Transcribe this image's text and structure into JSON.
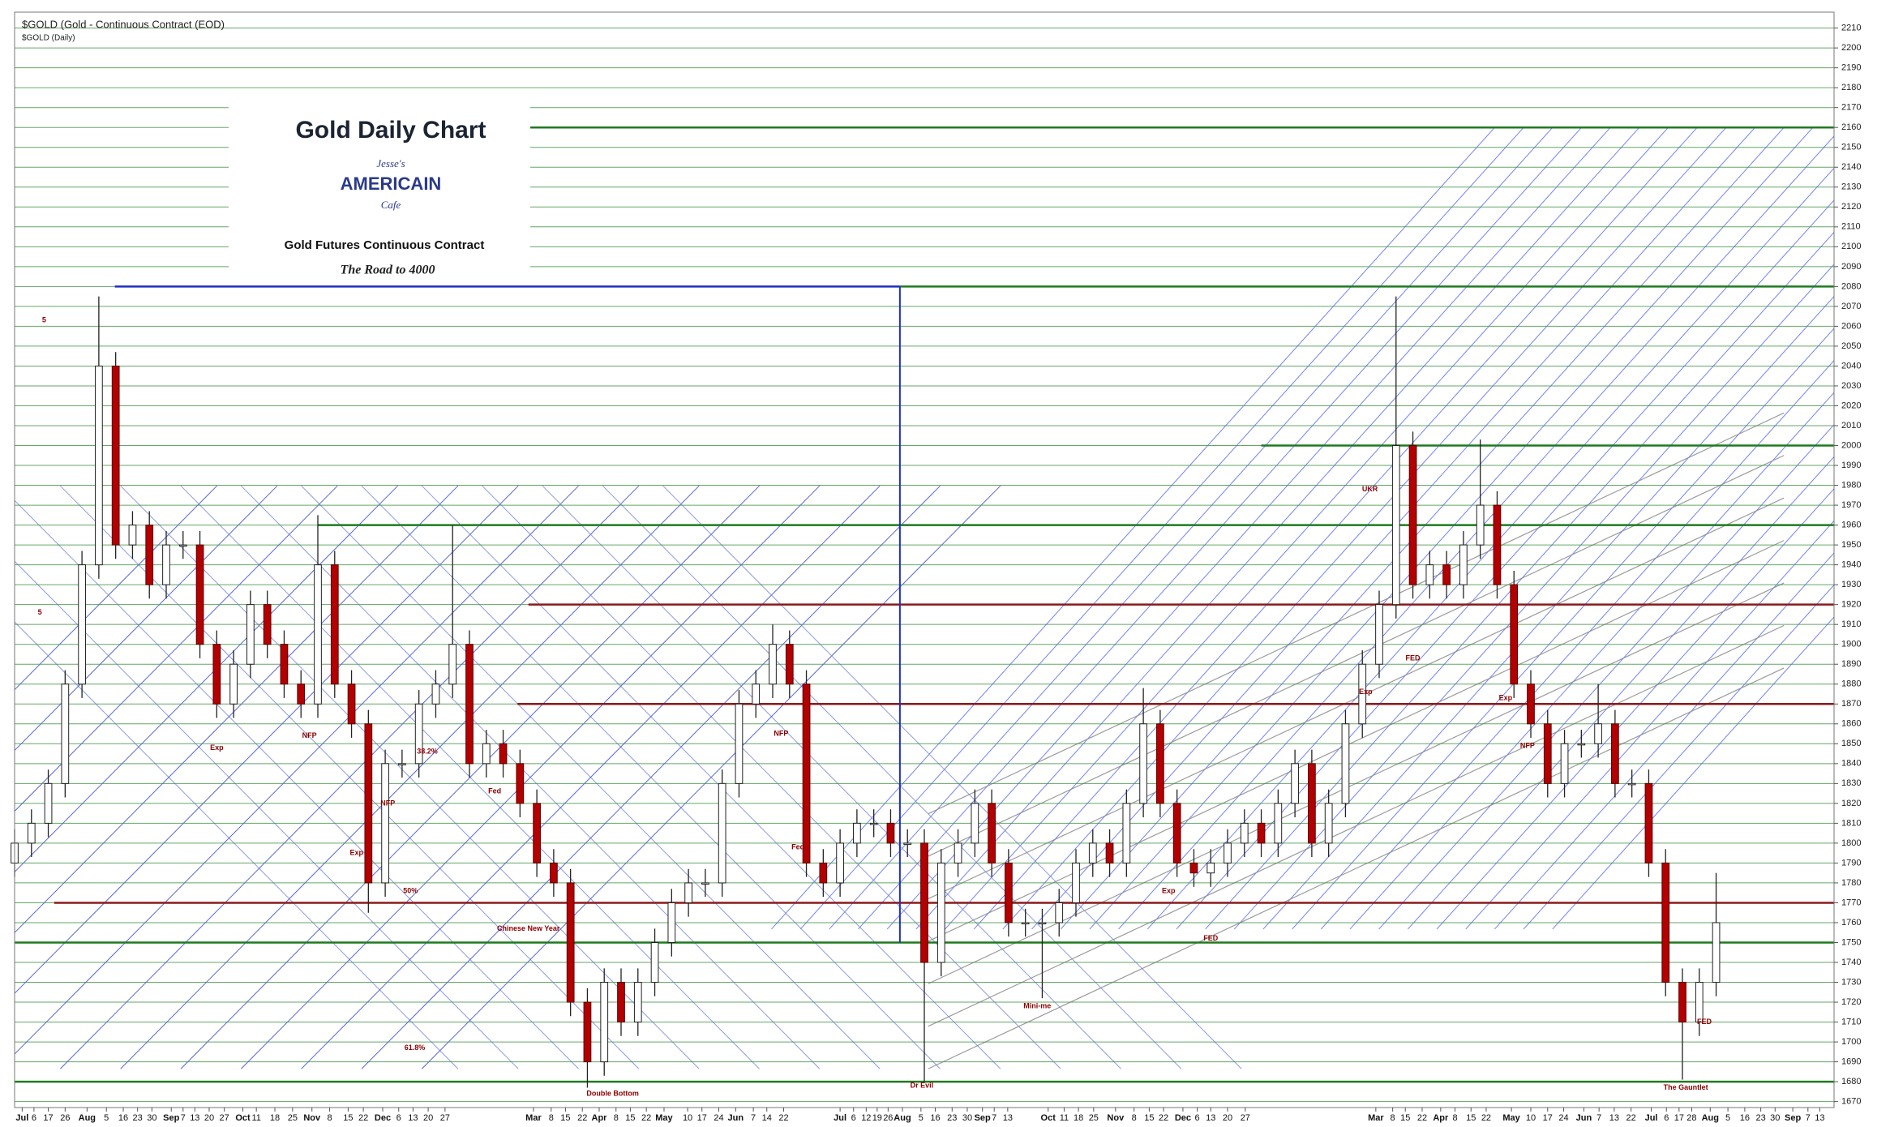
{
  "chart_data": {
    "type": "candlestick",
    "header": "$GOLD (Gold - Continuous Contract (EOD)",
    "subheader": "$GOLD (Daily)",
    "title": "Gold Daily Chart",
    "logo": {
      "top": "Jesse's",
      "main": "AMERICAIN",
      "bottom": "Cafe"
    },
    "subtitle": "Gold Futures Continuous Contract",
    "tagline": "The Road to 4000",
    "up_color": "#ffffff",
    "down_color": "#b30000",
    "grid": true,
    "grid_color": "#3f8f3f",
    "annotation_color": "#8b0000",
    "xlim": [
      0,
      216
    ],
    "ylim": [
      1667,
      2218
    ],
    "yticks": [
      1670,
      1680,
      1690,
      1700,
      1710,
      1720,
      1730,
      1740,
      1750,
      1760,
      1770,
      1780,
      1790,
      1800,
      1810,
      1820,
      1830,
      1840,
      1850,
      1860,
      1870,
      1880,
      1890,
      1900,
      1910,
      1920,
      1930,
      1940,
      1950,
      1960,
      1970,
      1980,
      1990,
      2000,
      2010,
      2020,
      2030,
      2040,
      2050,
      2060,
      2070,
      2080,
      2090,
      2100,
      2110,
      2120,
      2130,
      2140,
      2150,
      2160,
      2170,
      2180,
      2190,
      2200,
      2210
    ],
    "xticks": [
      {
        "value": 0.9,
        "label": "Jul"
      },
      {
        "value": 2.3,
        "label": "6"
      },
      {
        "value": 4,
        "label": "17"
      },
      {
        "value": 6,
        "label": "26"
      },
      {
        "value": 8.6,
        "label": "Aug"
      },
      {
        "value": 10.9,
        "label": "5"
      },
      {
        "value": 12.9,
        "label": "16"
      },
      {
        "value": 14.6,
        "label": "23"
      },
      {
        "value": 16.3,
        "label": "30"
      },
      {
        "value": 18.6,
        "label": "Sep"
      },
      {
        "value": 20,
        "label": "7"
      },
      {
        "value": 21.4,
        "label": "13"
      },
      {
        "value": 23.1,
        "label": "20"
      },
      {
        "value": 24.9,
        "label": "27"
      },
      {
        "value": 27.1,
        "label": "Oct"
      },
      {
        "value": 28.7,
        "label": "11"
      },
      {
        "value": 30.9,
        "label": "18"
      },
      {
        "value": 33,
        "label": "25"
      },
      {
        "value": 35.3,
        "label": "Nov"
      },
      {
        "value": 37.4,
        "label": "8"
      },
      {
        "value": 39.6,
        "label": "15"
      },
      {
        "value": 41.4,
        "label": "22"
      },
      {
        "value": 43.7,
        "label": "Dec"
      },
      {
        "value": 45.6,
        "label": "6"
      },
      {
        "value": 47.3,
        "label": "13"
      },
      {
        "value": 49.1,
        "label": "20"
      },
      {
        "value": 51.1,
        "label": "27"
      },
      {
        "value": 61.6,
        "label": "Mar"
      },
      {
        "value": 63.7,
        "label": "8"
      },
      {
        "value": 65.4,
        "label": "15"
      },
      {
        "value": 67.4,
        "label": "22"
      },
      {
        "value": 69.4,
        "label": "Apr"
      },
      {
        "value": 71.4,
        "label": "8"
      },
      {
        "value": 73.1,
        "label": "15"
      },
      {
        "value": 75,
        "label": "22"
      },
      {
        "value": 77.1,
        "label": "May"
      },
      {
        "value": 79.9,
        "label": "10"
      },
      {
        "value": 81.6,
        "label": "17"
      },
      {
        "value": 83.6,
        "label": "24"
      },
      {
        "value": 85.6,
        "label": "Jun"
      },
      {
        "value": 87.7,
        "label": "7"
      },
      {
        "value": 89.3,
        "label": "14"
      },
      {
        "value": 91.3,
        "label": "22"
      },
      {
        "value": 98,
        "label": "Jul"
      },
      {
        "value": 99.6,
        "label": "6"
      },
      {
        "value": 101.1,
        "label": "12"
      },
      {
        "value": 102.4,
        "label": "19"
      },
      {
        "value": 103.7,
        "label": "26"
      },
      {
        "value": 105.4,
        "label": "Aug"
      },
      {
        "value": 107.6,
        "label": "5"
      },
      {
        "value": 109.3,
        "label": "16"
      },
      {
        "value": 111.3,
        "label": "23"
      },
      {
        "value": 113.1,
        "label": "30"
      },
      {
        "value": 114.9,
        "label": "Sep"
      },
      {
        "value": 116.3,
        "label": "7"
      },
      {
        "value": 117.9,
        "label": "13"
      },
      {
        "value": 122.7,
        "label": "Oct"
      },
      {
        "value": 124.6,
        "label": "11"
      },
      {
        "value": 126.3,
        "label": "18"
      },
      {
        "value": 128.1,
        "label": "25"
      },
      {
        "value": 130.7,
        "label": "Nov"
      },
      {
        "value": 132.9,
        "label": "8"
      },
      {
        "value": 134.7,
        "label": "15"
      },
      {
        "value": 136.4,
        "label": "22"
      },
      {
        "value": 138.7,
        "label": "Dec"
      },
      {
        "value": 140.4,
        "label": "6"
      },
      {
        "value": 142,
        "label": "13"
      },
      {
        "value": 144,
        "label": "20"
      },
      {
        "value": 146.1,
        "label": "27"
      },
      {
        "value": 161.6,
        "label": "Mar"
      },
      {
        "value": 163.6,
        "label": "8"
      },
      {
        "value": 165.1,
        "label": "15"
      },
      {
        "value": 167.1,
        "label": "22"
      },
      {
        "value": 169.3,
        "label": "Apr"
      },
      {
        "value": 171,
        "label": "8"
      },
      {
        "value": 172.9,
        "label": "15"
      },
      {
        "value": 174.7,
        "label": "22"
      },
      {
        "value": 177.7,
        "label": "May"
      },
      {
        "value": 180,
        "label": "10"
      },
      {
        "value": 182,
        "label": "17"
      },
      {
        "value": 183.9,
        "label": "24"
      },
      {
        "value": 186.3,
        "label": "Jun"
      },
      {
        "value": 188.1,
        "label": "7"
      },
      {
        "value": 189.9,
        "label": "13"
      },
      {
        "value": 191.9,
        "label": "22"
      },
      {
        "value": 194.3,
        "label": "Jul"
      },
      {
        "value": 196.1,
        "label": "6"
      },
      {
        "value": 197.6,
        "label": "17"
      },
      {
        "value": 199.1,
        "label": "28"
      },
      {
        "value": 201.3,
        "label": "Aug"
      },
      {
        "value": 203.4,
        "label": "5"
      },
      {
        "value": 205.4,
        "label": "16"
      },
      {
        "value": 207.3,
        "label": "23"
      },
      {
        "value": 209,
        "label": "30"
      },
      {
        "value": 211.1,
        "label": "Sep"
      },
      {
        "value": 212.9,
        "label": "7"
      },
      {
        "value": 214.3,
        "label": "13"
      }
    ],
    "x": [
      0,
      2,
      4,
      6,
      8,
      10,
      12,
      14,
      16,
      18,
      20,
      22,
      24,
      26,
      28,
      30,
      32,
      34,
      36,
      38,
      40,
      42,
      44,
      46,
      48,
      50,
      52,
      54,
      56,
      58,
      60,
      62,
      64,
      66,
      68,
      70,
      72,
      74,
      76,
      78,
      80,
      82,
      84,
      86,
      88,
      90,
      92,
      94,
      96,
      98,
      100,
      102,
      104,
      106,
      108,
      110,
      112,
      114,
      116,
      118,
      120,
      122,
      124,
      126,
      128,
      130,
      132,
      134,
      136,
      138,
      140,
      142,
      144,
      146,
      148,
      150,
      152,
      154,
      156,
      158,
      160,
      162,
      164,
      166,
      168,
      170,
      172,
      174,
      176,
      178,
      180,
      182,
      184,
      186,
      188,
      190,
      192,
      194,
      196,
      198,
      200,
      202
    ],
    "open": [
      1790,
      1800,
      1810,
      1830,
      1880,
      1940,
      2040,
      1950,
      1960,
      1930,
      1950,
      1950,
      1900,
      1870,
      1890,
      1920,
      1900,
      1880,
      1870,
      1940,
      1880,
      1860,
      1780,
      1840,
      1840,
      1870,
      1880,
      1900,
      1840,
      1850,
      1840,
      1820,
      1790,
      1780,
      1720,
      1690,
      1730,
      1710,
      1730,
      1750,
      1770,
      1780,
      1780,
      1830,
      1870,
      1880,
      1900,
      1880,
      1790,
      1780,
      1800,
      1810,
      1810,
      1800,
      1800,
      1740,
      1790,
      1800,
      1820,
      1790,
      1760,
      1760,
      1760,
      1770,
      1790,
      1800,
      1790,
      1820,
      1860,
      1820,
      1790,
      1785,
      1790,
      1800,
      1810,
      1800,
      1820,
      1840,
      1800,
      1820,
      1860,
      1890,
      1920,
      2000,
      1930,
      1940,
      1930,
      1950,
      1970,
      1930,
      1880,
      1860,
      1830,
      1850,
      1850,
      1860,
      1830,
      1830,
      1790,
      1730,
      1710,
      1730
    ],
    "high": [
      1807,
      1817,
      1837,
      1887,
      1947,
      2075,
      2047,
      1967,
      1967,
      1957,
      1957,
      1957,
      1907,
      1897,
      1927,
      1927,
      1907,
      1887,
      1965,
      1947,
      1887,
      1867,
      1847,
      1847,
      1877,
      1887,
      1960,
      1907,
      1857,
      1857,
      1847,
      1827,
      1797,
      1787,
      1727,
      1737,
      1737,
      1737,
      1757,
      1777,
      1787,
      1787,
      1837,
      1877,
      1887,
      1910,
      1907,
      1887,
      1797,
      1807,
      1817,
      1817,
      1817,
      1807,
      1807,
      1797,
      1807,
      1827,
      1827,
      1797,
      1767,
      1767,
      1777,
      1797,
      1807,
      1807,
      1827,
      1878,
      1867,
      1827,
      1797,
      1797,
      1807,
      1817,
      1817,
      1827,
      1847,
      1847,
      1827,
      1867,
      1897,
      1927,
      2075,
      2007,
      1947,
      1947,
      1957,
      2003,
      1977,
      1937,
      1887,
      1867,
      1857,
      1857,
      1880,
      1867,
      1837,
      1837,
      1797,
      1737,
      1737,
      1785
    ],
    "low": [
      1783,
      1793,
      1803,
      1823,
      1873,
      1933,
      1943,
      1943,
      1923,
      1923,
      1943,
      1893,
      1863,
      1863,
      1883,
      1893,
      1873,
      1863,
      1863,
      1873,
      1853,
      1765,
      1773,
      1833,
      1833,
      1863,
      1873,
      1833,
      1833,
      1833,
      1813,
      1783,
      1773,
      1713,
      1677,
      1683,
      1703,
      1703,
      1723,
      1743,
      1763,
      1773,
      1773,
      1823,
      1863,
      1873,
      1873,
      1783,
      1773,
      1773,
      1793,
      1803,
      1793,
      1793,
      1680,
      1733,
      1783,
      1793,
      1783,
      1753,
      1753,
      1722,
      1753,
      1763,
      1783,
      1783,
      1783,
      1813,
      1813,
      1783,
      1778,
      1778,
      1783,
      1793,
      1793,
      1793,
      1813,
      1793,
      1793,
      1813,
      1853,
      1883,
      1913,
      1923,
      1923,
      1923,
      1923,
      1943,
      1923,
      1873,
      1853,
      1823,
      1823,
      1843,
      1843,
      1823,
      1823,
      1783,
      1723,
      1681,
      1703,
      1723
    ],
    "close": [
      1800,
      1810,
      1830,
      1880,
      1940,
      2040,
      1950,
      1960,
      1930,
      1950,
      1950,
      1900,
      1870,
      1890,
      1920,
      1900,
      1880,
      1870,
      1940,
      1880,
      1860,
      1780,
      1840,
      1840,
      1870,
      1880,
      1900,
      1840,
      1850,
      1840,
      1820,
      1790,
      1780,
      1720,
      1690,
      1730,
      1710,
      1730,
      1750,
      1770,
      1780,
      1780,
      1830,
      1870,
      1880,
      1900,
      1880,
      1790,
      1780,
      1800,
      1810,
      1810,
      1800,
      1800,
      1740,
      1790,
      1800,
      1820,
      1790,
      1760,
      1760,
      1760,
      1770,
      1790,
      1800,
      1790,
      1820,
      1860,
      1820,
      1790,
      1785,
      1790,
      1800,
      1810,
      1800,
      1820,
      1840,
      1800,
      1820,
      1860,
      1890,
      1920,
      2000,
      1930,
      1940,
      1930,
      1950,
      1970,
      1930,
      1880,
      1860,
      1830,
      1850,
      1850,
      1860,
      1830,
      1830,
      1790,
      1730,
      1710,
      1730,
      1760
    ],
    "levels": [
      {
        "value": 2160,
        "color": "#1f7a1f",
        "from": 61,
        "to": 216
      },
      {
        "value": 2080,
        "color": "#1f2fbf",
        "from": 11.9,
        "to": 105.1
      },
      {
        "value": 2080,
        "color": "#1f7a1f",
        "from": 105.1,
        "to": 216
      },
      {
        "value": 2000,
        "color": "#1f7a1f",
        "from": 148,
        "to": 216
      },
      {
        "value": 1960,
        "color": "#1f7a1f",
        "from": 36,
        "to": 216
      },
      {
        "value": 1920,
        "color": "#8b1a1a",
        "from": 61,
        "to": 216
      },
      {
        "value": 1870,
        "color": "#8b1a1a",
        "from": 59.7,
        "to": 216
      },
      {
        "value": 1770,
        "color": "#8b1a1a",
        "from": 4.7,
        "to": 216
      },
      {
        "value": 1750,
        "color": "#1f7a1f",
        "from": 0,
        "to": 216
      },
      {
        "value": 1680,
        "color": "#1f7a1f",
        "from": 0,
        "to": 216
      }
    ],
    "annotations": [
      {
        "text": "5",
        "x": 3.5,
        "y": 2067
      },
      {
        "text": "5",
        "x": 3,
        "y": 1920
      },
      {
        "text": "Exp",
        "x": 24,
        "y": 1852
      },
      {
        "text": "NFP",
        "x": 35,
        "y": 1858
      },
      {
        "text": "Exp",
        "x": 40.6,
        "y": 1799
      },
      {
        "text": "NFP",
        "x": 44.3,
        "y": 1824
      },
      {
        "text": "38.2%",
        "x": 49,
        "y": 1850
      },
      {
        "text": "50%",
        "x": 47,
        "y": 1780
      },
      {
        "text": "61.8%",
        "x": 47.5,
        "y": 1701
      },
      {
        "text": "Fed",
        "x": 57,
        "y": 1830
      },
      {
        "text": "Chinese New Year",
        "x": 61,
        "y": 1761
      },
      {
        "text": "Double Bottom",
        "x": 71,
        "y": 1678
      },
      {
        "text": "NFP",
        "x": 91,
        "y": 1859
      },
      {
        "text": "Fed",
        "x": 93,
        "y": 1802
      },
      {
        "text": "Dr Evil",
        "x": 107.7,
        "y": 1682
      },
      {
        "text": "Mini-me",
        "x": 121.4,
        "y": 1722
      },
      {
        "text": "Exp",
        "x": 137,
        "y": 1780
      },
      {
        "text": "FED",
        "x": 142,
        "y": 1756
      },
      {
        "text": "Exp",
        "x": 160.4,
        "y": 1880
      },
      {
        "text": "UKR",
        "x": 160.9,
        "y": 1982
      },
      {
        "text": "FED",
        "x": 166,
        "y": 1897
      },
      {
        "text": "Exp",
        "x": 177,
        "y": 1877
      },
      {
        "text": "NFP",
        "x": 179.6,
        "y": 1853
      },
      {
        "text": "The Gauntlet",
        "x": 198.4,
        "y": 1681
      },
      {
        "text": "FED",
        "x": 200.6,
        "y": 1714
      }
    ]
  }
}
